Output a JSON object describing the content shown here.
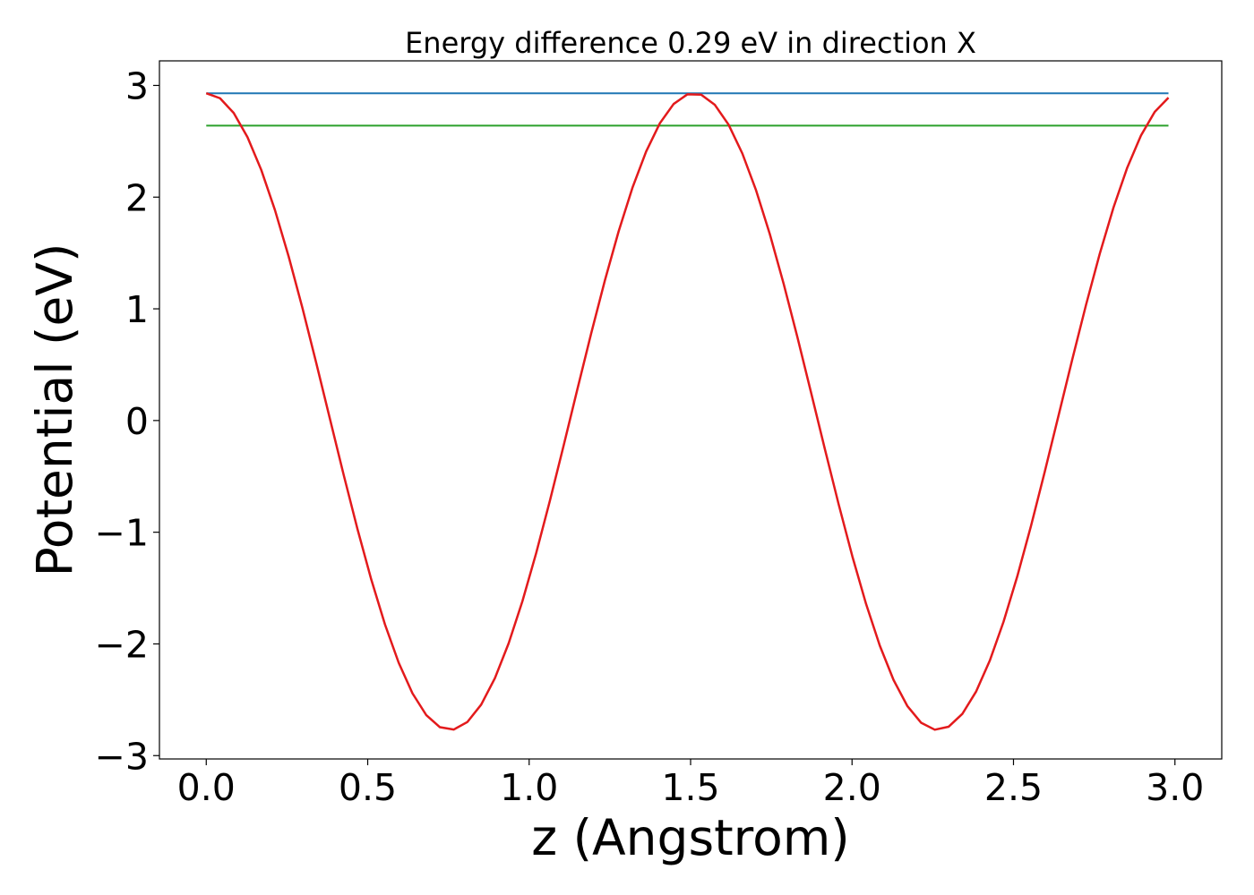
{
  "chart_data": {
    "type": "line",
    "title": "Energy difference 0.29 eV in direction X",
    "xlabel": "z (Angstrom)",
    "ylabel": "Potential (eV)",
    "xlim": [
      -0.145,
      3.145
    ],
    "ylim": [
      -3.03,
      3.22
    ],
    "xticks": [
      0.0,
      0.5,
      1.0,
      1.5,
      2.0,
      2.5,
      3.0
    ],
    "xtick_labels": [
      "0.0",
      "0.5",
      "1.0",
      "1.5",
      "2.0",
      "2.5",
      "3.0"
    ],
    "yticks": [
      -3,
      -2,
      -1,
      0,
      1,
      2,
      3
    ],
    "ytick_labels": [
      "−3",
      "−2",
      "−1",
      "0",
      "1",
      "2",
      "3"
    ],
    "grid": false,
    "series": [
      {
        "kind": "hline",
        "color": "#1f77b4",
        "x_start": 0.0,
        "x_end": 2.98,
        "y": 2.93
      },
      {
        "kind": "hline",
        "color": "#2ca02c",
        "x_start": 0.0,
        "x_end": 2.98,
        "y": 2.64
      },
      {
        "kind": "curve",
        "color": "#e31a1c",
        "x_start": 0.0,
        "x_end": 2.98,
        "points": 71,
        "period": 1.51,
        "center": 0.08,
        "amplitude": 2.85
      }
    ]
  }
}
